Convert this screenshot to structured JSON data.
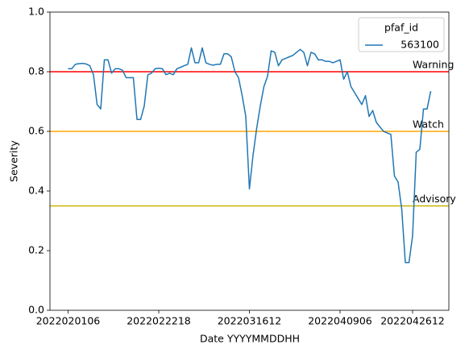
{
  "chart_data": {
    "type": "line",
    "xlabel": "Date YYYYMMDDHH",
    "ylabel": "Severity",
    "categories": [
      "2022020106",
      null,
      null,
      null,
      null,
      null,
      null,
      null,
      null,
      null,
      null,
      null,
      null,
      null,
      null,
      null,
      null,
      null,
      null,
      null,
      null,
      null,
      null,
      null,
      null,
      "2022022218",
      null,
      null,
      null,
      null,
      null,
      null,
      null,
      null,
      null,
      null,
      null,
      null,
      null,
      null,
      null,
      null,
      null,
      null,
      null,
      null,
      null,
      null,
      null,
      null,
      "2022031612",
      null,
      null,
      null,
      null,
      null,
      null,
      null,
      null,
      null,
      null,
      null,
      null,
      null,
      null,
      null,
      null,
      null,
      null,
      null,
      null,
      null,
      null,
      null,
      null,
      "2022040906",
      null,
      null,
      null,
      null,
      null,
      null,
      null,
      null,
      null,
      null,
      null,
      null,
      null,
      null,
      null,
      null,
      null,
      null,
      null,
      "2022042612",
      null,
      null,
      null,
      null,
      null
    ],
    "series": [
      {
        "name": "563100",
        "color": "#1f77b4",
        "values": [
          0.81,
          0.81,
          0.825,
          0.827,
          0.828,
          0.826,
          0.82,
          0.79,
          0.69,
          0.675,
          0.84,
          0.84,
          0.795,
          0.81,
          0.81,
          0.805,
          0.78,
          0.78,
          0.78,
          0.64,
          0.64,
          0.685,
          0.79,
          0.795,
          0.81,
          0.812,
          0.81,
          0.79,
          0.795,
          0.79,
          0.81,
          0.815,
          0.82,
          0.825,
          0.88,
          0.83,
          0.83,
          0.88,
          0.83,
          0.825,
          0.822,
          0.825,
          0.825,
          0.86,
          0.86,
          0.85,
          0.8,
          0.78,
          0.72,
          0.65,
          0.407,
          0.52,
          0.61,
          0.685,
          0.75,
          0.785,
          0.87,
          0.865,
          0.82,
          0.84,
          0.845,
          0.85,
          0.855,
          0.865,
          0.875,
          0.865,
          0.82,
          0.865,
          0.86,
          0.84,
          0.84,
          0.835,
          0.835,
          0.83,
          0.835,
          0.84,
          0.775,
          0.8,
          0.75,
          0.73,
          0.71,
          0.69,
          0.72,
          0.65,
          0.67,
          0.63,
          0.615,
          0.6,
          0.595,
          0.59,
          0.45,
          0.43,
          0.34,
          0.16,
          0.16,
          0.25,
          0.53,
          0.54,
          0.675,
          0.675,
          0.735
        ]
      }
    ],
    "legend_title": "pfaf_id",
    "legend": "upper right",
    "thresholds": [
      {
        "label": "Warning",
        "value": 0.8,
        "color": "#ff0000"
      },
      {
        "label": "Watch",
        "value": 0.6,
        "color": "#ffa500"
      },
      {
        "label": "Advisory",
        "value": 0.35,
        "color": "#c8b400"
      }
    ],
    "ylim": [
      0,
      1
    ],
    "yticks": [
      {
        "value": 0,
        "label": "0.0"
      },
      0.2,
      0.4,
      0.6,
      0.8,
      {
        "value": 1,
        "label": "1.0"
      }
    ]
  }
}
